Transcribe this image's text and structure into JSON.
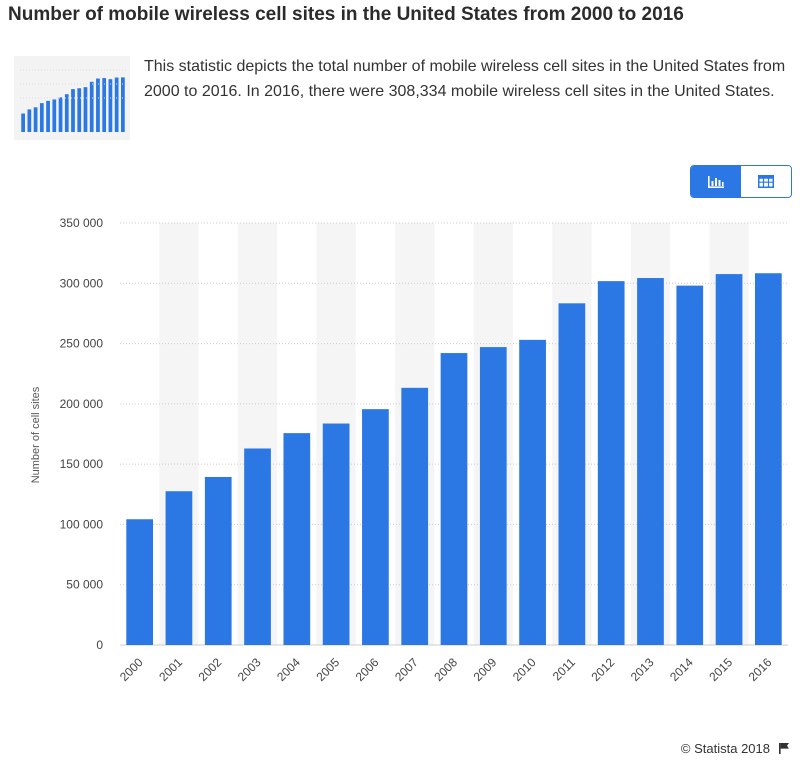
{
  "title": "Number of mobile wireless cell sites in the United States from 2000 to 2016",
  "description": "This statistic depicts the total number of mobile wireless cell sites in the United States from 2000 to 2016. In 2016, there were 308,334 mobile wireless cell sites in the United States.",
  "thumbnail": {
    "icon": "chart-thumbnail-icon"
  },
  "view_toggle": {
    "active": "chart",
    "chart_icon": "bar-chart-icon",
    "table_icon": "table-icon"
  },
  "footer": {
    "copyright": "© Statista 2018",
    "flag_icon": "flag-icon"
  },
  "colors": {
    "bar": "#2b78e4",
    "band": "#f5f5f5",
    "grid": "#cccccc",
    "accent": "#2b78e4"
  },
  "chart_data": {
    "type": "bar",
    "title": "Number of mobile wireless cell sites in the United States from 2000 to 2016",
    "xlabel": "",
    "ylabel": "Number of cell sites",
    "categories": [
      "2000",
      "2001",
      "2002",
      "2003",
      "2004",
      "2005",
      "2006",
      "2007",
      "2008",
      "2009",
      "2010",
      "2011",
      "2012",
      "2013",
      "2014",
      "2015",
      "2016"
    ],
    "values": [
      104288,
      127540,
      139338,
      162986,
      175725,
      183689,
      195613,
      213299,
      242130,
      247081,
      253086,
      283385,
      301779,
      304360,
      298055,
      307626,
      308334
    ],
    "yticks": [
      0,
      50000,
      100000,
      150000,
      200000,
      250000,
      300000,
      350000
    ],
    "ytick_labels": [
      "0",
      "50 000",
      "100 000",
      "150 000",
      "200 000",
      "250 000",
      "300 000",
      "350 000"
    ],
    "ylim": [
      0,
      350000
    ],
    "grid": true,
    "legend": "none"
  }
}
